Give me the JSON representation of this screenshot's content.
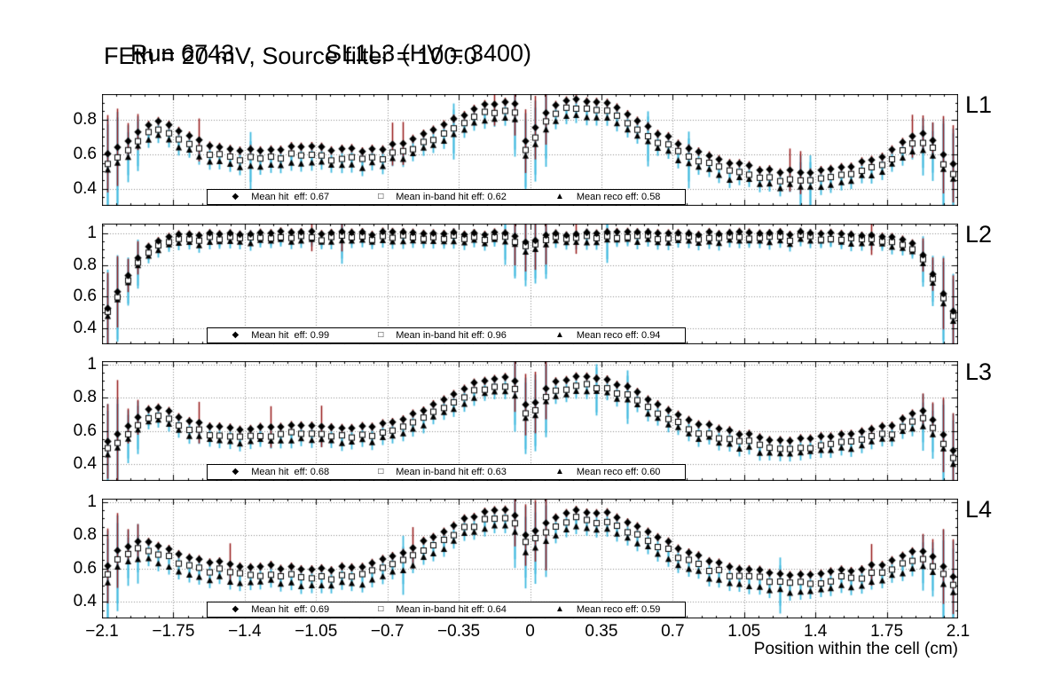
{
  "chart_data": {
    "type": "scatter",
    "title": {
      "run": "Run 6743",
      "chamber": "SL1L3 (HV = 3400)",
      "conditions": "FEth = 20 mV, Source filter = 100.0"
    },
    "xlabel": "Position within the cell (cm)",
    "xlim": [
      -2.1,
      2.1
    ],
    "xticks": [
      "−2.1",
      "−1.75",
      "−1.4",
      "−1.05",
      "−0.7",
      "−0.35",
      "0",
      "0.35",
      "0.7",
      "1.05",
      "1.4",
      "1.75",
      "2.1"
    ],
    "xtick_values": [
      -2.1,
      -1.75,
      -1.4,
      -1.05,
      -0.7,
      -0.35,
      0,
      0.35,
      0.7,
      1.05,
      1.4,
      1.75,
      2.1
    ],
    "n_points": 84,
    "x_start": -2.075,
    "x_step": 0.05,
    "grid": "dotted",
    "colors": {
      "marker": "#000000",
      "hit_error": "#961717",
      "band_error": "#3fb9df",
      "grid": "#8c8c8c",
      "frame": "#000000"
    },
    "series_styles": [
      {
        "key": "hit",
        "label": "Mean hit eff",
        "marker": "filled-diamond",
        "legend_glyph": "◆"
      },
      {
        "key": "inband",
        "label": "Mean in-band hit eff",
        "marker": "open-square",
        "legend_glyph": "□"
      },
      {
        "key": "reco",
        "label": "Mean reco eff",
        "marker": "filled-triangle",
        "legend_glyph": "▲"
      }
    ],
    "panels": [
      {
        "label": "L1",
        "ylim": [
          0.3,
          0.95
        ],
        "yticks": [
          0.8,
          0.6,
          0.4
        ],
        "means": {
          "hit": 0.67,
          "inband": 0.62,
          "reco": 0.58
        },
        "legend": [
          "Mean hit  eff: 0.67",
          "Mean in-band hit eff: 0.62",
          "Mean reco eff: 0.58"
        ],
        "offsets": {
          "inband": 0.05,
          "reco": 0.09
        },
        "hit_control_points": [
          [
            -2.1,
            0.6
          ],
          [
            -2.05,
            0.62
          ],
          [
            -2.0,
            0.65
          ],
          [
            -1.95,
            0.7
          ],
          [
            -1.9,
            0.76
          ],
          [
            -1.85,
            0.79
          ],
          [
            -1.8,
            0.78
          ],
          [
            -1.7,
            0.72
          ],
          [
            -1.6,
            0.67
          ],
          [
            -1.5,
            0.63
          ],
          [
            -1.4,
            0.62
          ],
          [
            -1.25,
            0.63
          ],
          [
            -1.1,
            0.64
          ],
          [
            -0.95,
            0.63
          ],
          [
            -0.8,
            0.62
          ],
          [
            -0.7,
            0.64
          ],
          [
            -0.6,
            0.68
          ],
          [
            -0.5,
            0.73
          ],
          [
            -0.4,
            0.79
          ],
          [
            -0.3,
            0.85
          ],
          [
            -0.2,
            0.89
          ],
          [
            -0.12,
            0.91
          ],
          [
            -0.06,
            0.88
          ],
          [
            -0.03,
            0.66
          ],
          [
            0.03,
            0.76
          ],
          [
            0.08,
            0.86
          ],
          [
            0.15,
            0.9
          ],
          [
            0.25,
            0.92
          ],
          [
            0.35,
            0.9
          ],
          [
            0.45,
            0.85
          ],
          [
            0.55,
            0.78
          ],
          [
            0.65,
            0.71
          ],
          [
            0.75,
            0.65
          ],
          [
            0.85,
            0.6
          ],
          [
            0.95,
            0.56
          ],
          [
            1.05,
            0.53
          ],
          [
            1.15,
            0.51
          ],
          [
            1.25,
            0.5
          ],
          [
            1.35,
            0.49
          ],
          [
            1.45,
            0.51
          ],
          [
            1.55,
            0.53
          ],
          [
            1.65,
            0.56
          ],
          [
            1.75,
            0.6
          ],
          [
            1.85,
            0.68
          ],
          [
            1.9,
            0.74
          ],
          [
            1.95,
            0.72
          ],
          [
            2.0,
            0.64
          ],
          [
            2.05,
            0.56
          ],
          [
            2.1,
            0.52
          ]
        ]
      },
      {
        "label": "L2",
        "ylim": [
          0.3,
          1.06
        ],
        "yticks": [
          1,
          0.8,
          0.6,
          0.4
        ],
        "means": {
          "hit": 0.99,
          "inband": 0.96,
          "reco": 0.94
        },
        "legend": [
          "Mean hit  eff: 0.99",
          "Mean in-band hit eff: 0.96",
          "Mean reco eff: 0.94"
        ],
        "offsets": {
          "inband": 0.03,
          "reco": 0.055
        },
        "hit_control_points": [
          [
            -2.1,
            0.5
          ],
          [
            -2.05,
            0.56
          ],
          [
            -2.0,
            0.68
          ],
          [
            -1.95,
            0.8
          ],
          [
            -1.9,
            0.9
          ],
          [
            -1.85,
            0.95
          ],
          [
            -1.8,
            0.97
          ],
          [
            -1.7,
            0.99
          ],
          [
            -1.55,
            1.0
          ],
          [
            -1.0,
            1.0
          ],
          [
            -0.5,
            1.0
          ],
          [
            -0.15,
            1.0
          ],
          [
            -0.06,
            0.99
          ],
          [
            -0.03,
            0.93
          ],
          [
            0.03,
            0.96
          ],
          [
            0.1,
            0.99
          ],
          [
            0.3,
            1.0
          ],
          [
            1.0,
            1.0
          ],
          [
            1.55,
            1.0
          ],
          [
            1.7,
            0.99
          ],
          [
            1.8,
            0.98
          ],
          [
            1.85,
            0.96
          ],
          [
            1.9,
            0.91
          ],
          [
            1.95,
            0.82
          ],
          [
            2.0,
            0.68
          ],
          [
            2.05,
            0.55
          ],
          [
            2.1,
            0.46
          ]
        ]
      },
      {
        "label": "L3",
        "ylim": [
          0.3,
          1.02
        ],
        "yticks": [
          1,
          0.8,
          0.6,
          0.4
        ],
        "means": {
          "hit": 0.68,
          "inband": 0.63,
          "reco": 0.6
        },
        "legend": [
          "Mean hit  eff: 0.68",
          "Mean in-band hit eff: 0.63",
          "Mean reco eff: 0.60"
        ],
        "offsets": {
          "inband": 0.05,
          "reco": 0.085
        },
        "hit_control_points": [
          [
            -2.1,
            0.5
          ],
          [
            -2.05,
            0.57
          ],
          [
            -2.0,
            0.61
          ],
          [
            -1.95,
            0.66
          ],
          [
            -1.9,
            0.72
          ],
          [
            -1.85,
            0.74
          ],
          [
            -1.8,
            0.73
          ],
          [
            -1.7,
            0.68
          ],
          [
            -1.6,
            0.64
          ],
          [
            -1.5,
            0.62
          ],
          [
            -1.4,
            0.61
          ],
          [
            -1.25,
            0.62
          ],
          [
            -1.1,
            0.63
          ],
          [
            -0.95,
            0.62
          ],
          [
            -0.85,
            0.62
          ],
          [
            -0.75,
            0.63
          ],
          [
            -0.65,
            0.66
          ],
          [
            -0.55,
            0.71
          ],
          [
            -0.45,
            0.77
          ],
          [
            -0.35,
            0.84
          ],
          [
            -0.25,
            0.9
          ],
          [
            -0.15,
            0.93
          ],
          [
            -0.08,
            0.92
          ],
          [
            -0.03,
            0.76
          ],
          [
            0.03,
            0.78
          ],
          [
            0.1,
            0.88
          ],
          [
            0.2,
            0.92
          ],
          [
            0.3,
            0.93
          ],
          [
            0.4,
            0.9
          ],
          [
            0.5,
            0.85
          ],
          [
            0.6,
            0.78
          ],
          [
            0.7,
            0.72
          ],
          [
            0.8,
            0.66
          ],
          [
            0.9,
            0.62
          ],
          [
            1.0,
            0.59
          ],
          [
            1.1,
            0.57
          ],
          [
            1.2,
            0.55
          ],
          [
            1.3,
            0.55
          ],
          [
            1.4,
            0.56
          ],
          [
            1.5,
            0.57
          ],
          [
            1.6,
            0.59
          ],
          [
            1.7,
            0.61
          ],
          [
            1.8,
            0.65
          ],
          [
            1.9,
            0.73
          ],
          [
            1.95,
            0.7
          ],
          [
            2.0,
            0.62
          ],
          [
            2.05,
            0.55
          ],
          [
            2.1,
            0.42
          ]
        ]
      },
      {
        "label": "L4",
        "ylim": [
          0.3,
          1.02
        ],
        "yticks": [
          1,
          0.8,
          0.6,
          0.4
        ],
        "means": {
          "hit": 0.69,
          "inband": 0.64,
          "reco": 0.59
        },
        "legend": [
          "Mean hit  eff: 0.69",
          "Mean in-band hit eff: 0.64",
          "Mean reco eff: 0.59"
        ],
        "offsets": {
          "inband": 0.05,
          "reco": 0.1
        },
        "hit_control_points": [
          [
            -2.1,
            0.56
          ],
          [
            -2.05,
            0.68
          ],
          [
            -2.0,
            0.72
          ],
          [
            -1.95,
            0.75
          ],
          [
            -1.9,
            0.78
          ],
          [
            -1.85,
            0.76
          ],
          [
            -1.8,
            0.73
          ],
          [
            -1.7,
            0.68
          ],
          [
            -1.6,
            0.65
          ],
          [
            -1.5,
            0.63
          ],
          [
            -1.4,
            0.62
          ],
          [
            -1.25,
            0.61
          ],
          [
            -1.1,
            0.6
          ],
          [
            -0.95,
            0.6
          ],
          [
            -0.85,
            0.61
          ],
          [
            -0.75,
            0.64
          ],
          [
            -0.65,
            0.68
          ],
          [
            -0.55,
            0.74
          ],
          [
            -0.45,
            0.81
          ],
          [
            -0.35,
            0.88
          ],
          [
            -0.25,
            0.93
          ],
          [
            -0.15,
            0.95
          ],
          [
            -0.08,
            0.93
          ],
          [
            -0.03,
            0.8
          ],
          [
            0.03,
            0.82
          ],
          [
            0.1,
            0.9
          ],
          [
            0.2,
            0.94
          ],
          [
            0.3,
            0.95
          ],
          [
            0.4,
            0.92
          ],
          [
            0.5,
            0.87
          ],
          [
            0.6,
            0.81
          ],
          [
            0.7,
            0.74
          ],
          [
            0.8,
            0.68
          ],
          [
            0.9,
            0.64
          ],
          [
            1.0,
            0.61
          ],
          [
            1.1,
            0.59
          ],
          [
            1.2,
            0.57
          ],
          [
            1.3,
            0.56
          ],
          [
            1.4,
            0.57
          ],
          [
            1.5,
            0.58
          ],
          [
            1.6,
            0.6
          ],
          [
            1.7,
            0.62
          ],
          [
            1.8,
            0.66
          ],
          [
            1.9,
            0.72
          ],
          [
            1.95,
            0.7
          ],
          [
            2.0,
            0.65
          ],
          [
            2.05,
            0.58
          ],
          [
            2.1,
            0.52
          ]
        ]
      }
    ]
  }
}
